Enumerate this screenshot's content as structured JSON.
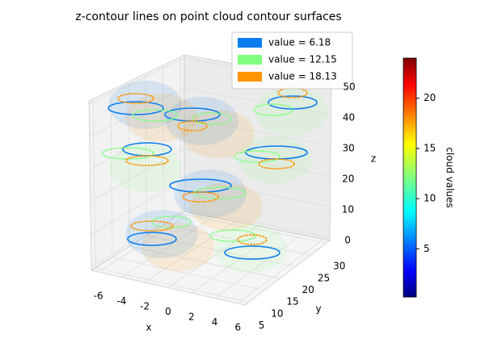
{
  "chart_data": {
    "type": "contour3d",
    "title": "z-contour lines on point cloud contour surfaces",
    "series": [
      {
        "name": "value = 6.18",
        "color": "#0a7df0"
      },
      {
        "name": "value = 12.15",
        "color": "#80ff80"
      },
      {
        "name": "value = 18.13",
        "color": "#ff9400"
      }
    ],
    "xlabel": "x",
    "ylabel": "y",
    "zlabel": "z",
    "xlim": [
      -6.6,
      6.6
    ],
    "xticks": [
      -6,
      -4,
      -2,
      0,
      2,
      4,
      6
    ],
    "ylim": [
      3.8,
      31.1
    ],
    "yticks": [
      5,
      10,
      15,
      20,
      25,
      30
    ],
    "zlim": [
      -1,
      51
    ],
    "zticks": [
      0,
      10,
      20,
      30,
      40,
      50
    ],
    "colorbar": {
      "label": "cloud values",
      "clim": [
        0.2,
        24
      ],
      "ticks": [
        5,
        10,
        15,
        20
      ],
      "colormap": "jet"
    },
    "grid": true,
    "legend_loc": "top"
  }
}
